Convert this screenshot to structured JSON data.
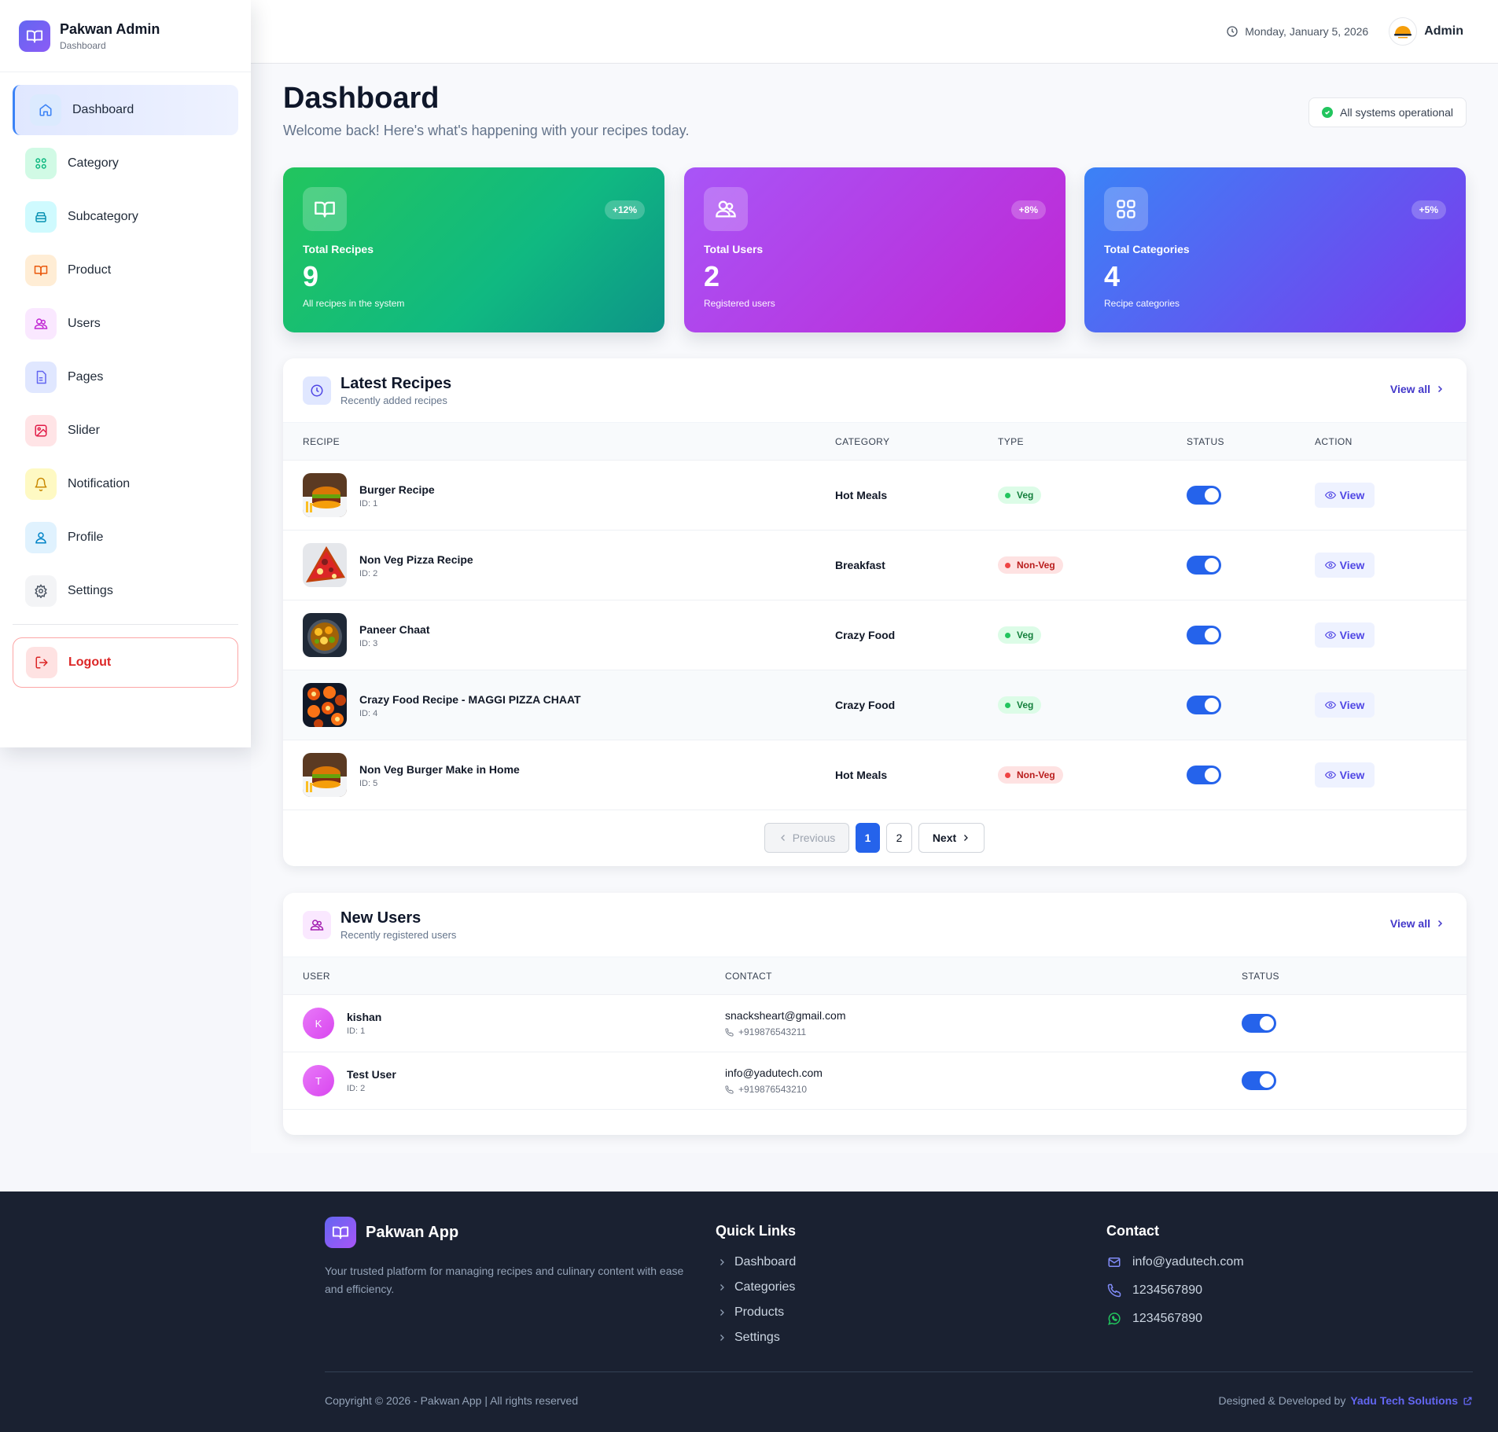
{
  "brand": {
    "title": "Pakwan Admin",
    "subtitle": "Dashboard"
  },
  "sidebar": {
    "items": [
      {
        "label": "Dashboard",
        "icon": "home-icon",
        "color": "#3b82f6",
        "bg": "#dbeafe"
      },
      {
        "label": "Category",
        "icon": "grid-icon",
        "color": "#10b981",
        "bg": "#d1fae5"
      },
      {
        "label": "Subcategory",
        "icon": "layers-icon",
        "color": "#0891b2",
        "bg": "#cffafe"
      },
      {
        "label": "Product",
        "icon": "book-icon",
        "color": "#ea580c",
        "bg": "#ffedd5"
      },
      {
        "label": "Users",
        "icon": "users-icon",
        "color": "#c026d3",
        "bg": "#fae8ff"
      },
      {
        "label": "Pages",
        "icon": "file-icon",
        "color": "#6366f1",
        "bg": "#e0e7ff"
      },
      {
        "label": "Slider",
        "icon": "image-icon",
        "color": "#e11d48",
        "bg": "#ffe4e6"
      },
      {
        "label": "Notification",
        "icon": "bell-icon",
        "color": "#ca8a04",
        "bg": "#fef9c3"
      },
      {
        "label": "Profile",
        "icon": "user-icon",
        "color": "#0284c7",
        "bg": "#e0f2fe"
      },
      {
        "label": "Settings",
        "icon": "gear-icon",
        "color": "#4b5563",
        "bg": "#f3f4f6"
      }
    ],
    "logout_label": "Logout"
  },
  "header": {
    "date": "Monday, January 5, 2026",
    "user": "Admin"
  },
  "page": {
    "title": "Dashboard",
    "subtitle": "Welcome back! Here's what's happening with your recipes today.",
    "status": "All systems operational"
  },
  "stats": [
    {
      "label": "Total Recipes",
      "value": "9",
      "desc": "All recipes in the system",
      "change": "+12%"
    },
    {
      "label": "Total Users",
      "value": "2",
      "desc": "Registered users",
      "change": "+8%"
    },
    {
      "label": "Total Categories",
      "value": "4",
      "desc": "Recipe categories",
      "change": "+5%"
    }
  ],
  "recipes": {
    "title": "Latest Recipes",
    "subtitle": "Recently added recipes",
    "view_all": "View all",
    "columns": [
      "RECIPE",
      "CATEGORY",
      "TYPE",
      "STATUS",
      "ACTION"
    ],
    "rows": [
      {
        "name": "Burger Recipe",
        "id": "ID: 1",
        "category": "Hot Meals",
        "type": "Veg",
        "action": "View"
      },
      {
        "name": "Non Veg Pizza Recipe",
        "id": "ID: 2",
        "category": "Breakfast",
        "type": "Non-Veg",
        "action": "View"
      },
      {
        "name": "Paneer Chaat",
        "id": "ID: 3",
        "category": "Crazy Food",
        "type": "Veg",
        "action": "View"
      },
      {
        "name": "Crazy Food Recipe - MAGGI PIZZA CHAAT",
        "id": "ID: 4",
        "category": "Crazy Food",
        "type": "Veg",
        "action": "View"
      },
      {
        "name": "Non Veg Burger Make in Home",
        "id": "ID: 5",
        "category": "Hot Meals",
        "type": "Non-Veg",
        "action": "View"
      }
    ],
    "pagination": {
      "prev": "Previous",
      "pages": [
        "1",
        "2"
      ],
      "next": "Next"
    }
  },
  "users": {
    "title": "New Users",
    "subtitle": "Recently registered users",
    "view_all": "View all",
    "columns": [
      "USER",
      "CONTACT",
      "STATUS"
    ],
    "rows": [
      {
        "initial": "K",
        "name": "kishan",
        "id": "ID: 1",
        "email": "snacksheart@gmail.com",
        "phone": "+919876543211"
      },
      {
        "initial": "T",
        "name": "Test User",
        "id": "ID: 2",
        "email": "info@yadutech.com",
        "phone": "+919876543210"
      }
    ]
  },
  "footer": {
    "name": "Pakwan App",
    "desc": "Your trusted platform for managing recipes and culinary content with ease and efficiency.",
    "links_title": "Quick Links",
    "links": [
      "Dashboard",
      "Categories",
      "Products",
      "Settings"
    ],
    "contact_title": "Contact",
    "email": "info@yadutech.com",
    "phone": "1234567890",
    "whatsapp": "1234567890",
    "copyright": "Copyright © 2026 - Pakwan App | All rights reserved",
    "credit_prefix": "Designed & Developed by",
    "credit_name": "Yadu Tech Solutions"
  }
}
